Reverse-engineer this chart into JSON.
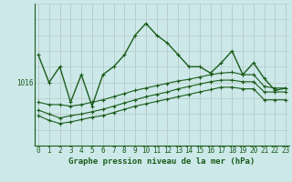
{
  "title": "Graphe pression niveau de la mer (hPa)",
  "background_color": "#cce8e8",
  "line_color": "#1a5c1a",
  "grid_v_color": "#b8c8c8",
  "grid_h_color": "#b8c8c8",
  "x_labels": [
    "0",
    "1",
    "2",
    "3",
    "4",
    "5",
    "6",
    "7",
    "8",
    "9",
    "10",
    "11",
    "12",
    "13",
    "14",
    "15",
    "16",
    "17",
    "18",
    "19",
    "20",
    "21",
    "22",
    "23"
  ],
  "y_tick_label": "1016",
  "y_tick_val": 1016,
  "ylim": [
    1008,
    1026
  ],
  "xlim": [
    -0.3,
    23.3
  ],
  "series0": [
    1019.5,
    1016.0,
    1018.0,
    1013.5,
    1017.0,
    1013.0,
    1017.0,
    1018.0,
    1019.5,
    1022.0,
    1023.5,
    1022.0,
    1021.0,
    1019.5,
    1018.0,
    1018.0,
    1017.2,
    1018.5,
    1020.0,
    1017.0,
    1018.5,
    1016.5,
    1015.0,
    1015.3
  ],
  "series1": [
    1013.5,
    1013.2,
    1013.2,
    1013.0,
    1013.2,
    1013.5,
    1013.8,
    1014.2,
    1014.6,
    1015.0,
    1015.3,
    1015.6,
    1015.9,
    1016.2,
    1016.4,
    1016.7,
    1017.0,
    1017.2,
    1017.3,
    1017.0,
    1017.0,
    1015.5,
    1015.3,
    1015.3
  ],
  "series2": [
    1012.5,
    1012.0,
    1011.5,
    1011.8,
    1012.0,
    1012.3,
    1012.6,
    1013.0,
    1013.4,
    1013.8,
    1014.2,
    1014.5,
    1014.8,
    1015.2,
    1015.5,
    1015.8,
    1016.1,
    1016.3,
    1016.3,
    1016.1,
    1016.1,
    1014.8,
    1014.8,
    1014.8
  ],
  "series3": [
    1011.8,
    1011.2,
    1010.8,
    1011.0,
    1011.3,
    1011.6,
    1011.8,
    1012.2,
    1012.6,
    1013.0,
    1013.3,
    1013.6,
    1013.9,
    1014.2,
    1014.5,
    1014.8,
    1015.1,
    1015.4,
    1015.4,
    1015.2,
    1015.2,
    1013.8,
    1013.8,
    1013.8
  ],
  "title_fontsize": 6.5,
  "tick_fontsize": 5.5
}
